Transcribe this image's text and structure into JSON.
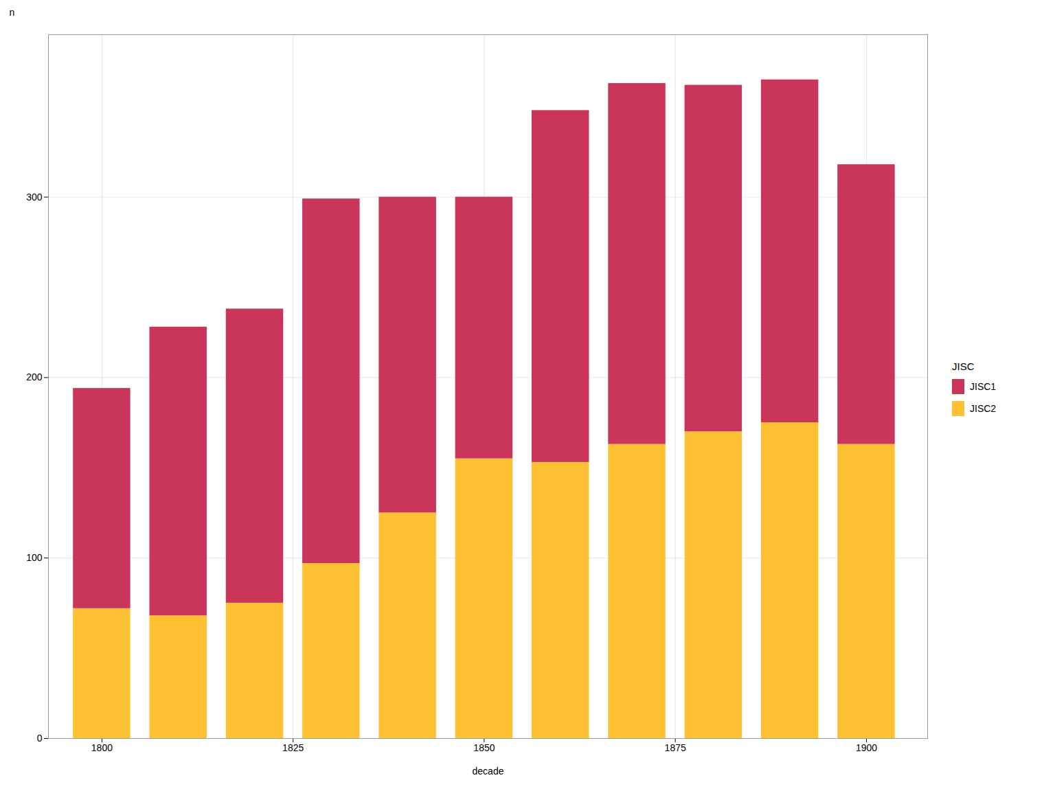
{
  "chart_data": {
    "type": "bar",
    "stacked": true,
    "x": [
      1800,
      1810,
      1820,
      1830,
      1840,
      1850,
      1860,
      1870,
      1880,
      1890,
      1900
    ],
    "series": [
      {
        "name": "JISC2",
        "color": "#FFC134",
        "values": [
          72,
          68,
          75,
          97,
          125,
          155,
          153,
          163,
          170,
          175,
          163
        ]
      },
      {
        "name": "JISC1",
        "color": "#C9365A",
        "values": [
          122,
          160,
          163,
          202,
          175,
          145,
          195,
          200,
          192,
          190,
          155
        ]
      }
    ],
    "xlabel": "decade",
    "ylabel": "n",
    "xlim": [
      1793,
      1908
    ],
    "xticks": [
      1800,
      1825,
      1850,
      1875,
      1900
    ],
    "ylim": [
      0,
      390
    ],
    "yticks": [
      0,
      100,
      200,
      300
    ],
    "grid": true,
    "legend": "right",
    "legend_title": "JISC"
  }
}
